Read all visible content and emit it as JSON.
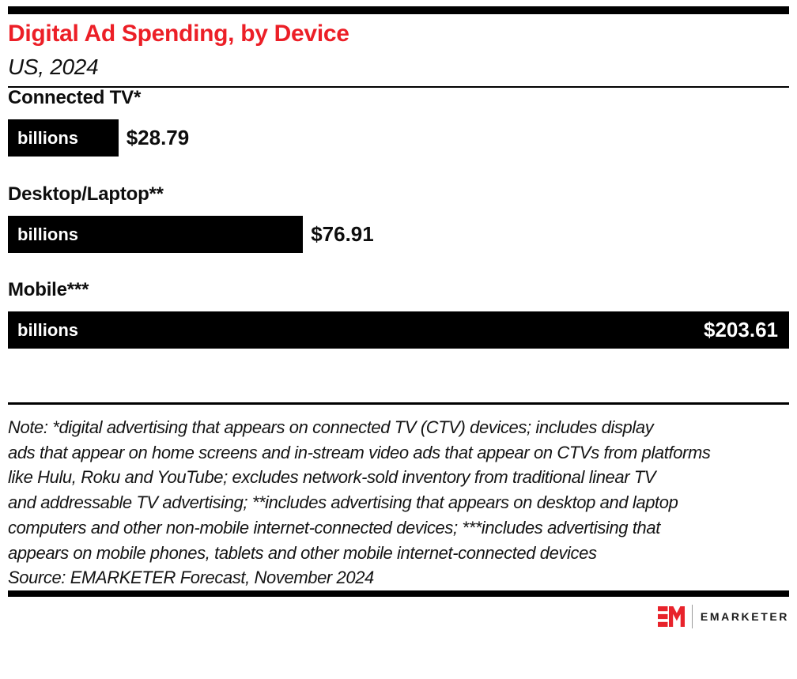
{
  "header": {
    "title": "Digital Ad Spending, by Device",
    "subtitle": "US, 2024",
    "title_color": "#EC1F27"
  },
  "chart_data": {
    "type": "bar",
    "orientation": "horizontal",
    "title": "Digital Ad Spending, by Device",
    "subtitle": "US, 2024",
    "unit_label": "billions",
    "categories": [
      "Connected TV*",
      "Desktop/Laptop**",
      "Mobile***"
    ],
    "values": [
      28.79,
      76.91,
      203.61
    ],
    "value_labels": [
      "$28.79",
      "$76.91",
      "$203.61"
    ],
    "xlim": [
      0,
      203.61
    ],
    "bar_color": "#000000",
    "grid": false,
    "legend": false
  },
  "note": {
    "lines": [
      "Note: *digital advertising that appears on connected TV (CTV) devices; includes display",
      "ads that appear on home screens and in-stream video ads that appear on CTVs from platforms",
      "like Hulu, Roku and YouTube; excludes network-sold inventory from traditional linear TV",
      "and addressable TV advertising; **includes advertising that appears on desktop and laptop",
      "computers and other non-mobile internet-connected devices; ***includes advertising that",
      "appears on mobile phones, tablets and other mobile internet-connected devices"
    ],
    "source": "Source: EMARKETER Forecast, November 2024"
  },
  "footer": {
    "brand": "EMARKETER",
    "logo_monogram": "EM",
    "brand_color": "#E8232B"
  }
}
